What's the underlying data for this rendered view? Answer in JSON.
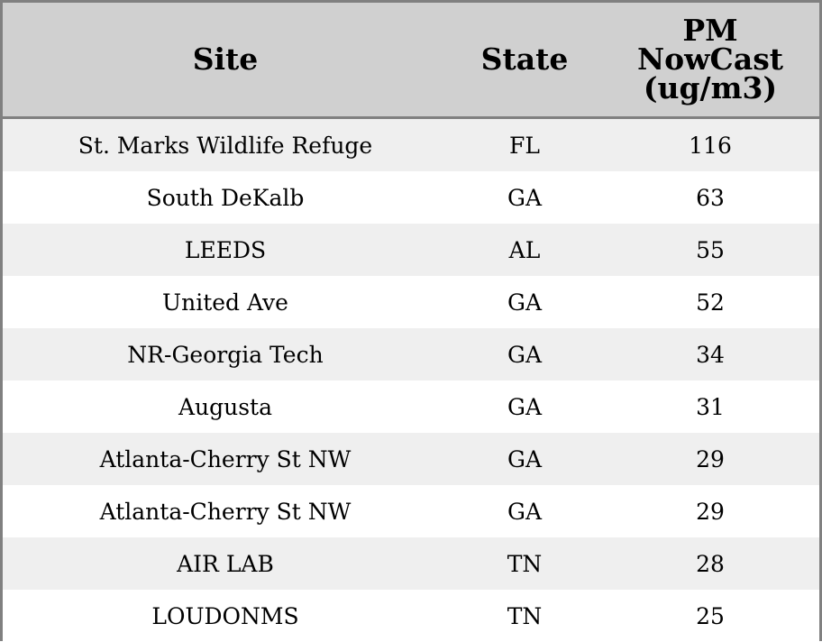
{
  "chart_data": {
    "type": "table",
    "columns": [
      "Site",
      "State",
      "PM NowCast (ug/m3)"
    ],
    "header_lines": {
      "site": [
        "Site"
      ],
      "state": [
        "State"
      ],
      "pm": [
        "PM",
        "NowCast",
        "(ug/m3)"
      ]
    },
    "rows": [
      {
        "site": "St. Marks Wildlife Refuge",
        "state": "FL",
        "pm": "116"
      },
      {
        "site": "South DeKalb",
        "state": "GA",
        "pm": "63"
      },
      {
        "site": "LEEDS",
        "state": "AL",
        "pm": "55"
      },
      {
        "site": "United Ave",
        "state": "GA",
        "pm": "52"
      },
      {
        "site": "NR-Georgia Tech",
        "state": "GA",
        "pm": "34"
      },
      {
        "site": "Augusta",
        "state": "GA",
        "pm": "31"
      },
      {
        "site": "Atlanta-Cherry St NW",
        "state": "GA",
        "pm": "29"
      },
      {
        "site": "Atlanta-Cherry St NW",
        "state": "GA",
        "pm": "29"
      },
      {
        "site": "AIR LAB",
        "state": "TN",
        "pm": "28"
      },
      {
        "site": "LOUDONMS",
        "state": "TN",
        "pm": "25"
      }
    ],
    "colors": {
      "header_background": "#d0d0d0",
      "shaded_row": "#efefef",
      "plain_row": "#ffffff",
      "border": "#808080"
    }
  }
}
